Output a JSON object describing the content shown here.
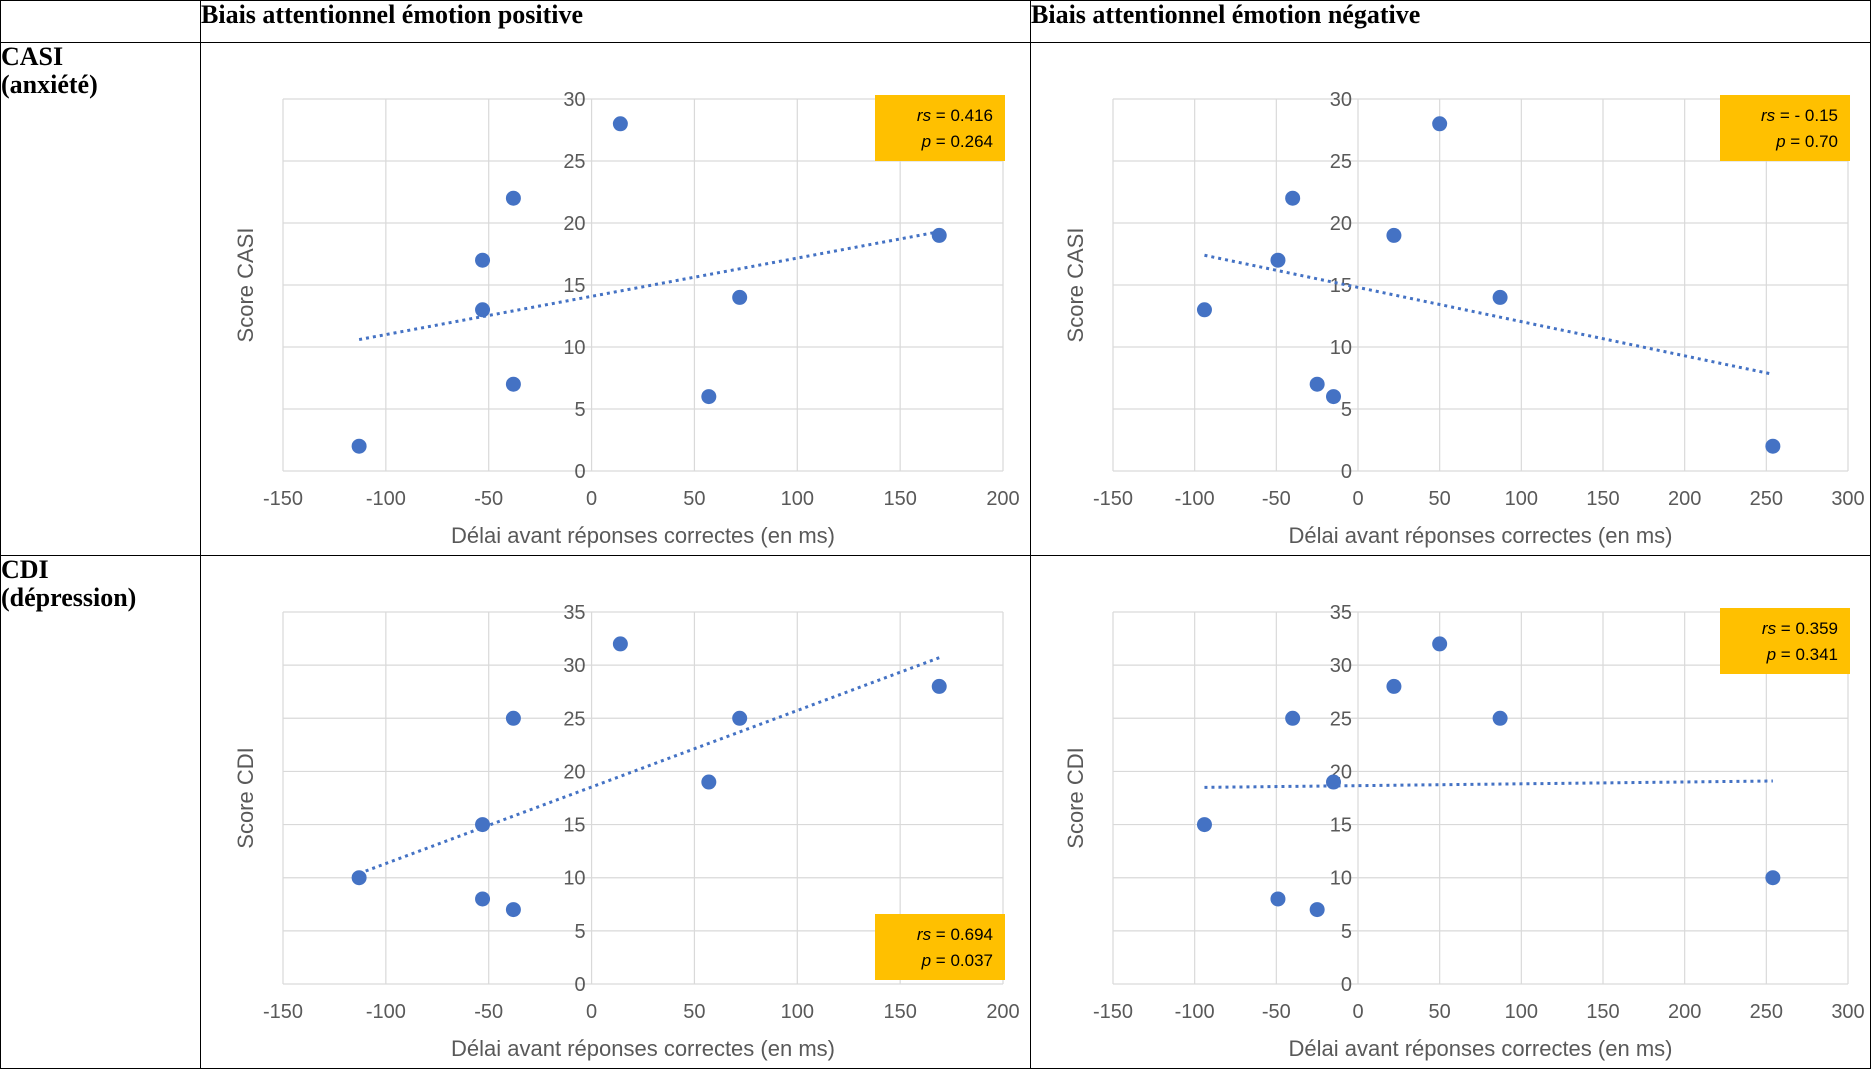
{
  "table": {
    "col_headers": [
      "Biais attentionnel émotion positive",
      "Biais attentionnel émotion négative"
    ],
    "rows": [
      {
        "label_line1": "CASI",
        "label_line2": "(anxiété)"
      },
      {
        "label_line1": "CDI",
        "label_line2": "(dépression)"
      }
    ]
  },
  "colors": {
    "point": "#4472C4",
    "trend": "#4472C4",
    "stat_box": "#FFC000",
    "grid": "#D9D9D9",
    "tick": "#595959"
  },
  "chart_data": [
    {
      "type": "scatter",
      "xlabel": "Délai avant réponses correctes (en ms)",
      "ylabel": "Score CASI",
      "xlim": [
        -150,
        200
      ],
      "xticks": [
        -150,
        -100,
        -50,
        0,
        50,
        100,
        150,
        200
      ],
      "ylim": [
        0,
        30
      ],
      "yticks": [
        0,
        5,
        10,
        15,
        20,
        25,
        30
      ],
      "grid": true,
      "points": [
        {
          "x": -113,
          "y": 2
        },
        {
          "x": -53,
          "y": 17
        },
        {
          "x": -53,
          "y": 13
        },
        {
          "x": -38,
          "y": 22
        },
        {
          "x": -38,
          "y": 7
        },
        {
          "x": 14,
          "y": 28
        },
        {
          "x": 57,
          "y": 6
        },
        {
          "x": 72,
          "y": 14
        },
        {
          "x": 169,
          "y": 19
        }
      ],
      "trendline": {
        "type": "linear",
        "x": [
          -113,
          169
        ],
        "y": [
          10.6,
          19.3
        ]
      },
      "annotation": {
        "rs_label": "rs",
        "rs_value": " = 0.416",
        "p_label": "p",
        "p_value": " = 0.264",
        "placement": "top-right"
      }
    },
    {
      "type": "scatter",
      "xlabel": "Délai avant réponses correctes (en ms)",
      "ylabel": "Score CASI",
      "xlim": [
        -150,
        300
      ],
      "xticks": [
        -150,
        -100,
        -50,
        0,
        50,
        100,
        150,
        200,
        250,
        300
      ],
      "ylim": [
        0,
        30
      ],
      "yticks": [
        0,
        5,
        10,
        15,
        20,
        25,
        30
      ],
      "grid": true,
      "points": [
        {
          "x": -94,
          "y": 13
        },
        {
          "x": -40,
          "y": 22
        },
        {
          "x": -49,
          "y": 17
        },
        {
          "x": -25,
          "y": 7
        },
        {
          "x": -15,
          "y": 6
        },
        {
          "x": 22,
          "y": 19
        },
        {
          "x": 50,
          "y": 28
        },
        {
          "x": 87,
          "y": 14
        },
        {
          "x": 254,
          "y": 2
        }
      ],
      "trendline": {
        "type": "linear",
        "x": [
          -94,
          254
        ],
        "y": [
          17.4,
          7.8
        ]
      },
      "annotation": {
        "rs_label": "rs",
        "rs_value": " = - 0.15",
        "p_label": "p",
        "p_value": " = 0.70",
        "placement": "top-right"
      }
    },
    {
      "type": "scatter",
      "xlabel": "Délai avant réponses correctes (en ms)",
      "ylabel": "Score CDI",
      "xlim": [
        -150,
        200
      ],
      "xticks": [
        -150,
        -100,
        -50,
        0,
        50,
        100,
        150,
        200
      ],
      "ylim": [
        0,
        35
      ],
      "yticks": [
        0,
        5,
        10,
        15,
        20,
        25,
        30,
        35
      ],
      "grid": true,
      "points": [
        {
          "x": -113,
          "y": 10
        },
        {
          "x": -53,
          "y": 15
        },
        {
          "x": -53,
          "y": 8
        },
        {
          "x": -38,
          "y": 25
        },
        {
          "x": -38,
          "y": 7
        },
        {
          "x": 14,
          "y": 32
        },
        {
          "x": 57,
          "y": 19
        },
        {
          "x": 72,
          "y": 25
        },
        {
          "x": 169,
          "y": 28
        }
      ],
      "trendline": {
        "type": "linear",
        "x": [
          -113,
          169
        ],
        "y": [
          10.4,
          30.7
        ]
      },
      "annotation": {
        "rs_label": "rs",
        "rs_value": " = 0.694",
        "p_label": "p",
        "p_value": " = 0.037",
        "placement": "bottom-right"
      }
    },
    {
      "type": "scatter",
      "xlabel": "Délai avant réponses correctes (en ms)",
      "ylabel": "Score CDI",
      "xlim": [
        -150,
        300
      ],
      "xticks": [
        -150,
        -100,
        -50,
        0,
        50,
        100,
        150,
        200,
        250,
        300
      ],
      "ylim": [
        0,
        35
      ],
      "yticks": [
        0,
        5,
        10,
        15,
        20,
        25,
        30,
        35
      ],
      "grid": true,
      "points": [
        {
          "x": -94,
          "y": 15
        },
        {
          "x": -40,
          "y": 25
        },
        {
          "x": -49,
          "y": 8
        },
        {
          "x": -25,
          "y": 7
        },
        {
          "x": -15,
          "y": 19
        },
        {
          "x": 22,
          "y": 28
        },
        {
          "x": 50,
          "y": 32
        },
        {
          "x": 87,
          "y": 25
        },
        {
          "x": 254,
          "y": 10
        }
      ],
      "trendline": {
        "type": "linear",
        "x": [
          -94,
          254
        ],
        "y": [
          18.5,
          19.1
        ]
      },
      "annotation": {
        "rs_label": "rs",
        "rs_value": " = 0.359",
        "p_label": "p",
        "p_value": " = 0.341",
        "placement": "top-right"
      }
    }
  ]
}
